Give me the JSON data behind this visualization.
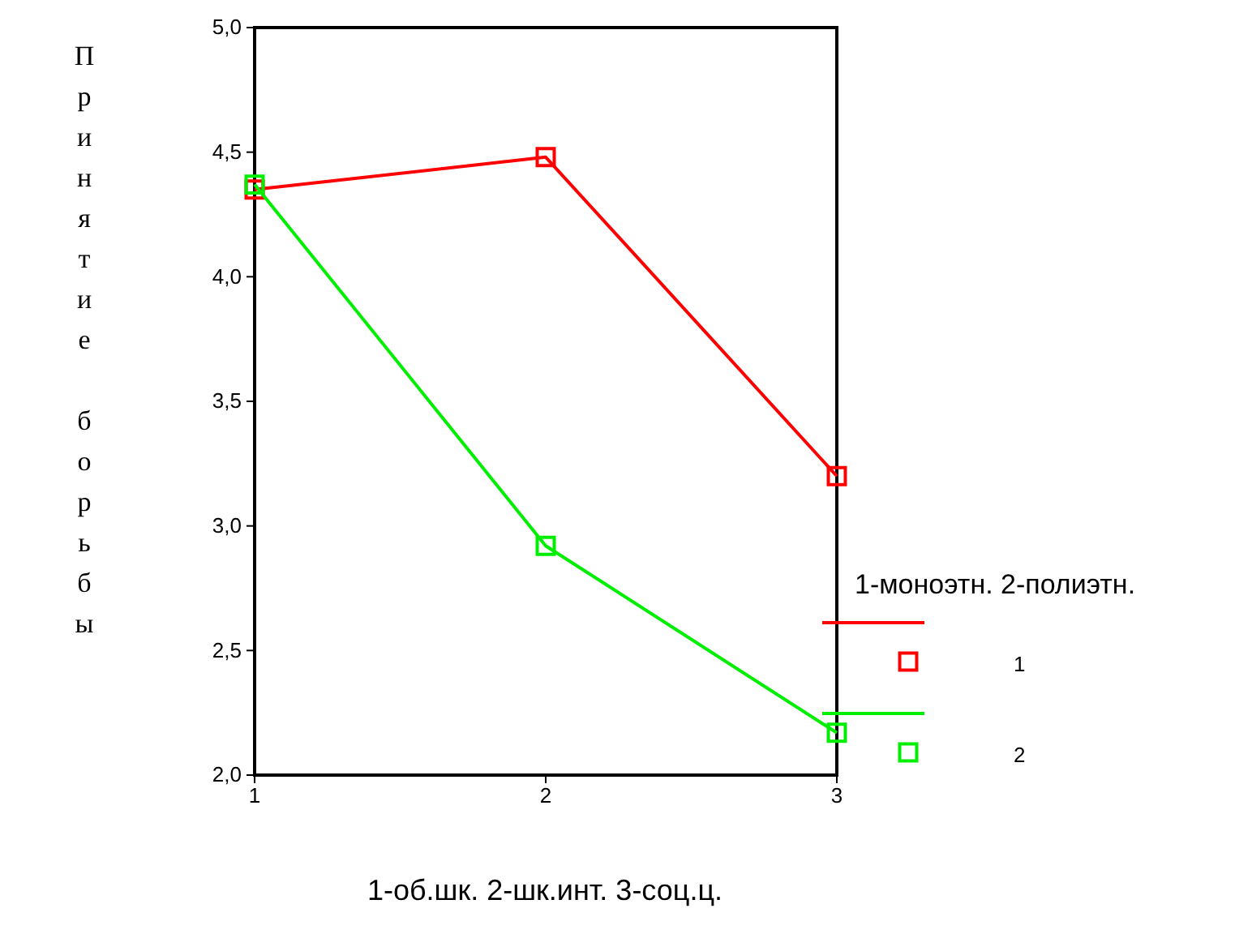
{
  "chart_data": {
    "type": "line",
    "xlabel": "1-об.шк. 2-шк.инт. 3-соц.ц.",
    "ylabel": "Принятие борьбы",
    "legend_title": "1-моноэтн. 2-полиэтн.",
    "x": [
      1,
      2,
      3
    ],
    "series": [
      {
        "name": "1",
        "color": "#ff0000",
        "values": [
          4.35,
          4.48,
          3.2
        ]
      },
      {
        "name": "2",
        "color": "#00ee00",
        "values": [
          4.37,
          2.92,
          2.17
        ]
      }
    ],
    "xlim": [
      1,
      3
    ],
    "xticks": [
      1,
      2,
      3
    ],
    "ylim": [
      2,
      5
    ],
    "yticks": [
      {
        "value": 2,
        "label": "2,0"
      },
      {
        "value": 2.5,
        "label": "2,5"
      },
      {
        "value": 3,
        "label": "3,0"
      },
      {
        "value": 3.5,
        "label": "3,5"
      },
      {
        "value": 4,
        "label": "4,0"
      },
      {
        "value": 4.5,
        "label": "4,5"
      },
      {
        "value": 5,
        "label": "5,0"
      }
    ],
    "marker": "square",
    "line_style": "solid",
    "grid": false,
    "legend": "right"
  }
}
